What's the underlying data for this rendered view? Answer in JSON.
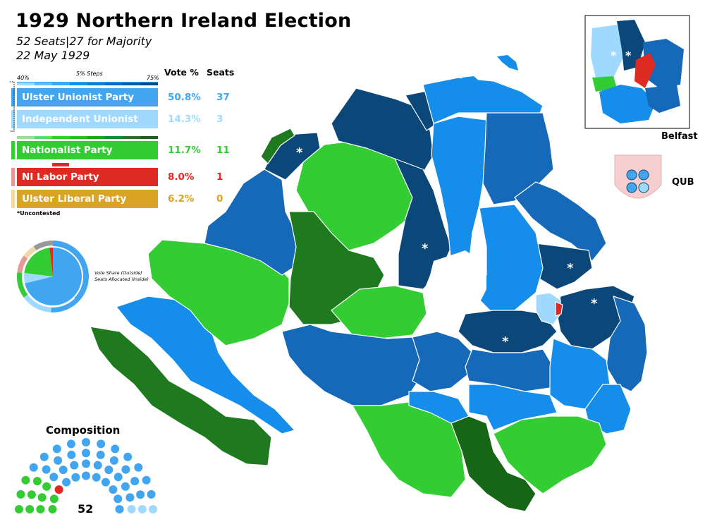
{
  "title": "1929 Northern Ireland Election",
  "subtitle": "52 Seats|27 for Majority",
  "date": "22 May 1929",
  "legend": {
    "vote_header": "Vote %",
    "seats_header": "Seats",
    "scale_min": "40%",
    "scale_step": "5% Steps",
    "scale_max": "75%",
    "uncontested_note": "*Uncontested",
    "uncontested_marker": "*",
    "parties": [
      {
        "name": "Ulster Unionist Party",
        "vote": "50.8%",
        "seats": "37",
        "color": "#42a5f0",
        "tab": "#42a5f0"
      },
      {
        "name": "Independent Unionist",
        "vote": "14.3%",
        "seats": "3",
        "color": "#9fd9ff",
        "tab": "#9fd9ff"
      },
      {
        "name": "Nationalist Party",
        "vote": "11.7%",
        "seats": "11",
        "color": "#33cc33",
        "tab": "#33cc33"
      },
      {
        "name": "NI Labor Party",
        "vote": "8.0%",
        "seats": "1",
        "color": "#dd2a22",
        "tab": "#e89893"
      },
      {
        "name": "Ulster Liberal Party",
        "vote": "6.2%",
        "seats": "0",
        "color": "#d9a323",
        "tab": "#f0d9a6"
      }
    ]
  },
  "pie": {
    "note_line1": "Vote Share (Outside)",
    "note_line2": "Seats Allocated (Inside)",
    "outer_colors": [
      "#42a5f0",
      "#9fd9ff",
      "#33cc33",
      "#e89893",
      "#f0d9a6",
      "#999999"
    ],
    "outer_shares": [
      50.8,
      14.3,
      11.7,
      8.0,
      6.2,
      9.0
    ],
    "inner_colors": [
      "#42a5f0",
      "#9fd9ff",
      "#33cc33",
      "#dd2a22"
    ],
    "inner_seats": [
      37,
      3,
      11,
      1
    ]
  },
  "composition": {
    "title": "Composition",
    "total": "52"
  },
  "insets": {
    "belfast_label": "Belfast",
    "qub_label": "QUB"
  },
  "colors": {
    "uup_light": "#148deb",
    "uup_mid": "#1569b8",
    "uup_dark": "#0b4879",
    "nat_light": "#33cc33",
    "nat_mid": "#22a022",
    "nat_dark": "#1f7a1f",
    "nat_darkest": "#166616",
    "labour": "#dd2a22"
  }
}
